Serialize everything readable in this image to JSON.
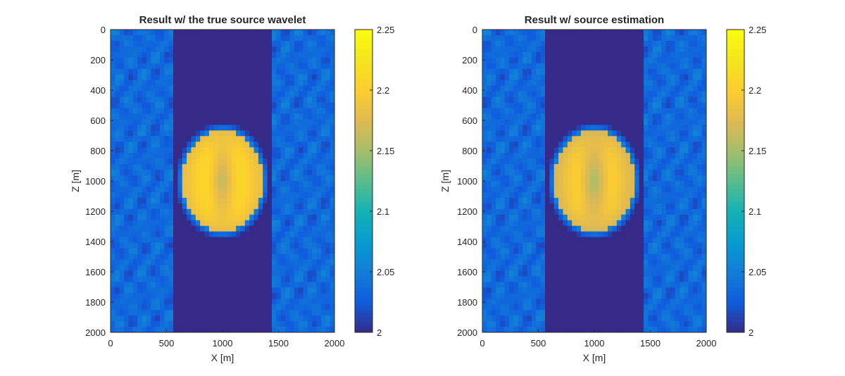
{
  "chart_data": [
    {
      "type": "heatmap",
      "title": "Result w/ the true source wavelet",
      "xlabel": "X [m]",
      "ylabel": "Z [m]",
      "xlim": [
        0,
        2000
      ],
      "ylim": [
        2000,
        0
      ],
      "y_reversed": true,
      "xticks": [
        0,
        500,
        1000,
        1500,
        2000
      ],
      "yticks": [
        0,
        200,
        400,
        600,
        800,
        1000,
        1200,
        1400,
        1600,
        1800,
        2000
      ],
      "colorbar": {
        "range": [
          2,
          2.25
        ],
        "ticks": [
          2,
          2.05,
          2.1,
          2.15,
          2.2,
          2.25
        ],
        "colormap": "parula"
      },
      "anomaly": {
        "center_x": 1000,
        "center_z": 1000,
        "radius_x": 360,
        "radius_z": 330,
        "value": 2.21
      },
      "background_value": 2.0,
      "scatter_bands_x": [
        [
          0,
          550
        ],
        [
          1450,
          2000
        ]
      ]
    },
    {
      "type": "heatmap",
      "title": "Result w/ source estimation",
      "xlabel": "X [m]",
      "ylabel": "Z [m]",
      "xlim": [
        0,
        2000
      ],
      "ylim": [
        2000,
        0
      ],
      "y_reversed": true,
      "xticks": [
        0,
        500,
        1000,
        1500,
        2000
      ],
      "yticks": [
        0,
        200,
        400,
        600,
        800,
        1000,
        1200,
        1400,
        1600,
        1800,
        2000
      ],
      "colorbar": {
        "range": [
          2,
          2.25
        ],
        "ticks": [
          2,
          2.05,
          2.1,
          2.15,
          2.2,
          2.25
        ],
        "colormap": "parula"
      },
      "anomaly": {
        "center_x": 1000,
        "center_z": 1000,
        "radius_x": 360,
        "radius_z": 330,
        "value": 2.2
      },
      "background_value": 2.0,
      "scatter_bands_x": [
        [
          0,
          550
        ],
        [
          1450,
          2000
        ]
      ]
    }
  ],
  "colors": {
    "parula_low": "#352a87",
    "parula_mid": "#0f9dd0",
    "parula_high": "#f9fb0e"
  }
}
